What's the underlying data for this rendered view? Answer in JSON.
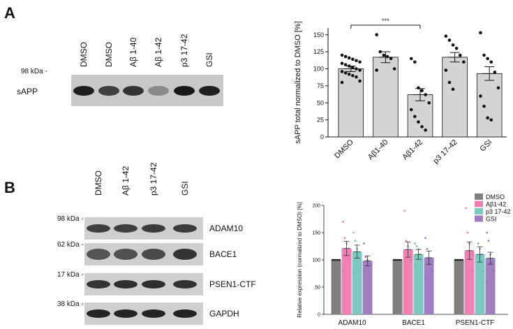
{
  "panels": {
    "a": {
      "letter": "A",
      "blot": {
        "lanes": [
          "DMSO",
          "DMSO",
          "Aβ 1-40",
          "Aβ 1-42",
          "p3 17-42",
          "GSI"
        ],
        "marker": "98 kDa -",
        "protein": "sAPP",
        "band_intensity": [
          0.95,
          0.8,
          0.85,
          0.45,
          0.98,
          0.95
        ]
      }
    },
    "b": {
      "letter": "B",
      "blot": {
        "lanes": [
          "DMSO",
          "Aβ 1-42",
          "p3 17-42",
          "GSI"
        ],
        "rows": [
          {
            "marker": "98 kDa -",
            "protein": "ADAM10",
            "band_intensity": [
              0.8,
              0.8,
              0.82,
              0.82
            ]
          },
          {
            "marker": "62 kDa -",
            "protein": "BACE1",
            "band_intensity": [
              0.7,
              0.72,
              0.75,
              0.85
            ]
          },
          {
            "marker": "17 kDa -",
            "protein": "PSEN1-CTF",
            "band_intensity": [
              0.85,
              0.88,
              0.88,
              0.86
            ]
          },
          {
            "marker": "38 kDa -",
            "protein": "GAPDH",
            "band_intensity": [
              0.92,
              0.92,
              0.93,
              0.93
            ]
          }
        ]
      }
    }
  },
  "chart_data": [
    {
      "type": "bar",
      "panel": "A",
      "categories": [
        "DMSO",
        "Aβ1-40",
        "Aβ1-42",
        "p3 17-42",
        "GSI"
      ],
      "values": [
        100,
        117,
        62,
        117,
        93
      ],
      "sem": [
        4,
        8,
        9,
        7,
        10
      ],
      "points": [
        [
          120,
          118,
          116,
          114,
          112,
          110,
          108,
          106,
          104,
          102,
          100,
          98,
          96,
          94,
          92,
          90,
          88,
          82,
          80
        ],
        [
          150,
          125,
          120,
          118,
          115,
          100,
          98
        ],
        [
          115,
          110,
          72,
          68,
          62,
          50,
          40,
          30,
          22,
          15,
          10
        ],
        [
          148,
          142,
          135,
          130,
          120,
          110,
          98,
          80,
          70
        ],
        [
          153,
          120,
          115,
          110,
          95,
          72,
          60,
          45,
          28,
          25
        ]
      ],
      "title": "",
      "ylabel": "sAPP total normalized to DMSO [%]",
      "ylim": [
        0,
        160
      ],
      "yticks": [
        0,
        25,
        50,
        75,
        100,
        125,
        150
      ],
      "significance": {
        "from": 0,
        "to": 2,
        "label": "***"
      }
    },
    {
      "type": "bar",
      "panel": "B",
      "categories": [
        "ADAM10",
        "BACE1",
        "PSEN1-CTF"
      ],
      "series": [
        {
          "name": "DMSO",
          "color": "#7f7f7f",
          "values": [
            100,
            100,
            100
          ],
          "sem": [
            0,
            0,
            0
          ],
          "points": [
            [
              100,
              100,
              100,
              100,
              100,
              100
            ],
            [
              100,
              100,
              100,
              100,
              100,
              100
            ],
            [
              100,
              100,
              100,
              100,
              100,
              100
            ]
          ]
        },
        {
          "name": "Aβ1-42",
          "color": "#f27fb2",
          "values": [
            121,
            119,
            117
          ],
          "sem": [
            13,
            14,
            16
          ],
          "points": [
            [
              170,
              140,
              130,
              120,
              100,
              80
            ],
            [
              190,
              135,
              125,
              110,
              100,
              95
            ],
            [
              195,
              150,
              130,
              110,
              80
            ]
          ]
        },
        {
          "name": "p3 17-42",
          "color": "#7dc8c0",
          "values": [
            115,
            110,
            110
          ],
          "sem": [
            12,
            9,
            14
          ],
          "points": [
            [
              150,
              135,
              120,
              105,
              95,
              75
            ],
            [
              130,
              125,
              120,
              110,
              100,
              90
            ],
            [
              175,
              130,
              120,
              110,
              80
            ]
          ]
        },
        {
          "name": "GSI",
          "color": "#a07ec1",
          "values": [
            98,
            104,
            103
          ],
          "sem": [
            9,
            12,
            11
          ],
          "points": [
            [
              130,
              105,
              100,
              95,
              90,
              80
            ],
            [
              140,
              120,
              100,
              90,
              80,
              65
            ],
            [
              150,
              135,
              110,
              95,
              80,
              60
            ]
          ]
        }
      ],
      "ylabel": "Relative expression (normalized to DMSO) [%]",
      "ylim": [
        0,
        200
      ],
      "yticks": [
        0,
        50,
        100,
        150,
        200
      ],
      "legend_position": "top-right"
    }
  ]
}
